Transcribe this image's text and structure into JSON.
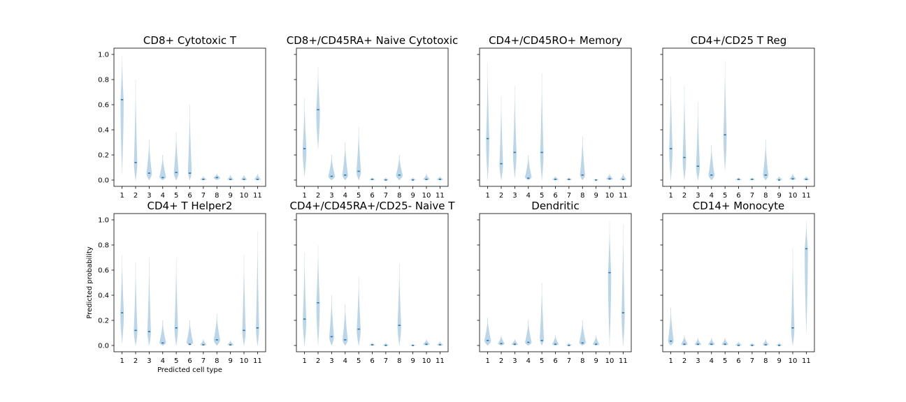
{
  "figure": {
    "ylabel": "Predicted probability",
    "xlabel": "Predicted cell type",
    "violin_color": "#1f77b4",
    "median_color": "#1f77b4"
  },
  "chart_data": [
    {
      "type": "violin",
      "title": "CD8+ Cytotoxic T",
      "categories": [
        "1",
        "2",
        "3",
        "4",
        "5",
        "6",
        "7",
        "8",
        "9",
        "10",
        "11"
      ],
      "medians": [
        0.64,
        0.14,
        0.055,
        0.02,
        0.06,
        0.055,
        0.005,
        0.02,
        0.005,
        0.005,
        0.005
      ],
      "mins": [
        0.05,
        0.0,
        0.0,
        0.0,
        0.0,
        0.0,
        0.0,
        0.0,
        0.0,
        0.0,
        0.0
      ],
      "maxs": [
        0.99,
        0.8,
        0.32,
        0.2,
        0.38,
        0.6,
        0.03,
        0.05,
        0.04,
        0.04,
        0.05
      ],
      "ylim": [
        -0.05,
        1.05
      ],
      "yticks": [
        "0.0",
        "0.2",
        "0.4",
        "0.6",
        "0.8",
        "1.0"
      ],
      "xlabel": "",
      "ylabel": ""
    },
    {
      "type": "violin",
      "title": "CD8+/CD45RA+ Naive Cytotoxic",
      "categories": [
        "1",
        "2",
        "3",
        "4",
        "5",
        "6",
        "7",
        "8",
        "9",
        "10",
        "11"
      ],
      "medians": [
        0.25,
        0.56,
        0.03,
        0.04,
        0.07,
        0.005,
        0.0,
        0.04,
        0.0,
        0.005,
        0.005
      ],
      "mins": [
        0.03,
        0.25,
        0.0,
        0.0,
        0.0,
        0.0,
        0.0,
        0.0,
        0.0,
        0.0,
        0.0
      ],
      "maxs": [
        0.65,
        0.9,
        0.2,
        0.3,
        0.42,
        0.02,
        0.02,
        0.2,
        0.02,
        0.05,
        0.03
      ],
      "ylim": [
        -0.05,
        1.05
      ],
      "yticks": [
        "0.0",
        "0.2",
        "0.4",
        "0.6",
        "0.8",
        "1.0"
      ],
      "xlabel": "",
      "ylabel": ""
    },
    {
      "type": "violin",
      "title": "CD4+/CD45RO+ Memory",
      "categories": [
        "1",
        "2",
        "3",
        "4",
        "5",
        "6",
        "7",
        "8",
        "9",
        "10",
        "11"
      ],
      "medians": [
        0.33,
        0.13,
        0.22,
        0.015,
        0.22,
        0.005,
        0.005,
        0.04,
        0.0,
        0.01,
        0.005
      ],
      "mins": [
        0.0,
        0.0,
        0.02,
        0.0,
        0.0,
        0.0,
        0.0,
        0.0,
        0.0,
        0.0,
        0.0
      ],
      "maxs": [
        0.93,
        0.67,
        0.75,
        0.2,
        0.85,
        0.03,
        0.02,
        0.35,
        0.01,
        0.05,
        0.05
      ],
      "ylim": [
        -0.05,
        1.05
      ],
      "yticks": [
        "0.0",
        "0.2",
        "0.4",
        "0.6",
        "0.8",
        "1.0"
      ],
      "xlabel": "",
      "ylabel": ""
    },
    {
      "type": "violin",
      "title": "CD4+/CD25 T Reg",
      "categories": [
        "1",
        "2",
        "3",
        "4",
        "5",
        "6",
        "7",
        "8",
        "9",
        "10",
        "11"
      ],
      "medians": [
        0.25,
        0.18,
        0.11,
        0.04,
        0.36,
        0.005,
        0.005,
        0.04,
        0.0,
        0.01,
        0.005
      ],
      "mins": [
        0.0,
        0.0,
        0.0,
        0.0,
        0.08,
        0.0,
        0.0,
        0.0,
        0.0,
        0.0,
        0.0
      ],
      "maxs": [
        0.82,
        0.75,
        0.62,
        0.28,
        0.95,
        0.02,
        0.02,
        0.32,
        0.03,
        0.05,
        0.03
      ],
      "ylim": [
        -0.05,
        1.05
      ],
      "yticks": [
        "0.0",
        "0.2",
        "0.4",
        "0.6",
        "0.8",
        "1.0"
      ],
      "xlabel": "",
      "ylabel": ""
    },
    {
      "type": "violin",
      "title": "CD4+ T Helper2",
      "categories": [
        "1",
        "2",
        "3",
        "4",
        "5",
        "6",
        "7",
        "8",
        "9",
        "10",
        "11"
      ],
      "medians": [
        0.26,
        0.12,
        0.11,
        0.02,
        0.14,
        0.01,
        0.005,
        0.045,
        0.005,
        0.12,
        0.14
      ],
      "mins": [
        0.02,
        0.0,
        0.0,
        0.0,
        0.0,
        0.0,
        0.0,
        0.0,
        0.0,
        0.0,
        0.0
      ],
      "maxs": [
        0.72,
        0.66,
        0.7,
        0.2,
        0.7,
        0.2,
        0.05,
        0.25,
        0.04,
        0.72,
        0.91
      ],
      "ylim": [
        -0.05,
        1.05
      ],
      "yticks": [
        "0.0",
        "0.2",
        "0.4",
        "0.6",
        "0.8",
        "1.0"
      ],
      "xlabel": "Predicted cell type",
      "ylabel": "Predicted probability"
    },
    {
      "type": "violin",
      "title": "CD4+/CD45RA+/CD25- Naive T",
      "categories": [
        "1",
        "2",
        "3",
        "4",
        "5",
        "6",
        "7",
        "8",
        "9",
        "10",
        "11"
      ],
      "medians": [
        0.21,
        0.34,
        0.07,
        0.045,
        0.13,
        0.005,
        0.0,
        0.16,
        0.0,
        0.01,
        0.005
      ],
      "mins": [
        0.0,
        0.0,
        0.0,
        0.0,
        0.0,
        0.0,
        0.0,
        0.0,
        0.0,
        0.0,
        0.0
      ],
      "maxs": [
        0.74,
        0.8,
        0.4,
        0.33,
        0.55,
        0.02,
        0.02,
        0.65,
        0.01,
        0.05,
        0.03
      ],
      "ylim": [
        -0.05,
        1.05
      ],
      "yticks": [
        "0.0",
        "0.2",
        "0.4",
        "0.6",
        "0.8",
        "1.0"
      ],
      "xlabel": "",
      "ylabel": ""
    },
    {
      "type": "violin",
      "title": "Dendritic",
      "categories": [
        "1",
        "2",
        "3",
        "4",
        "5",
        "6",
        "7",
        "8",
        "9",
        "10",
        "11"
      ],
      "medians": [
        0.04,
        0.015,
        0.01,
        0.025,
        0.04,
        0.01,
        0.0,
        0.02,
        0.01,
        0.58,
        0.26
      ],
      "mins": [
        0.0,
        0.0,
        0.0,
        0.0,
        0.0,
        0.0,
        0.0,
        0.0,
        0.0,
        0.0,
        0.0
      ],
      "maxs": [
        0.22,
        0.08,
        0.05,
        0.2,
        0.5,
        0.08,
        0.02,
        0.2,
        0.08,
        0.99,
        0.96
      ],
      "ylim": [
        -0.05,
        1.05
      ],
      "yticks": [
        "0.0",
        "0.2",
        "0.4",
        "0.6",
        "0.8",
        "1.0"
      ],
      "xlabel": "",
      "ylabel": ""
    },
    {
      "type": "violin",
      "title": "CD14+ Monocyte",
      "categories": [
        "1",
        "2",
        "3",
        "4",
        "5",
        "6",
        "7",
        "8",
        "9",
        "10",
        "11"
      ],
      "medians": [
        0.035,
        0.01,
        0.01,
        0.01,
        0.01,
        0.0,
        0.0,
        0.005,
        0.0,
        0.14,
        0.77
      ],
      "mins": [
        0.0,
        0.0,
        0.0,
        0.0,
        0.0,
        0.0,
        0.0,
        0.0,
        0.0,
        0.0,
        0.1
      ],
      "maxs": [
        0.3,
        0.08,
        0.06,
        0.06,
        0.06,
        0.03,
        0.02,
        0.05,
        0.02,
        0.78,
        0.99
      ],
      "ylim": [
        -0.05,
        1.05
      ],
      "yticks": [
        "0.0",
        "0.2",
        "0.4",
        "0.6",
        "0.8",
        "1.0"
      ],
      "xlabel": "",
      "ylabel": ""
    }
  ]
}
